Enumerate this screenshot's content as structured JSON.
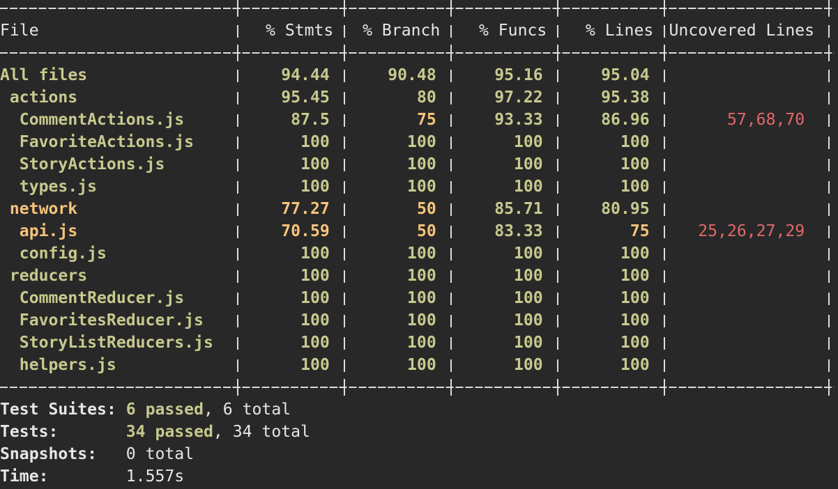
{
  "table": {
    "header": [
      "File",
      "% Stmts",
      "% Branch",
      "% Funcs",
      "% Lines",
      "Uncovered Lines"
    ],
    "rows": [
      [
        "All files",
        94.44,
        90.48,
        95.16,
        95.04,
        null
      ],
      [
        "actions",
        95.45,
        80,
        97.22,
        95.38,
        null
      ],
      [
        "CommentActions.js",
        87.5,
        75,
        93.33,
        86.96,
        "57,68,70"
      ],
      [
        "FavoriteActions.js",
        100,
        100,
        100,
        100,
        null
      ],
      [
        "StoryActions.js",
        100,
        100,
        100,
        100,
        null
      ],
      [
        "types.js",
        100,
        100,
        100,
        100,
        null
      ],
      [
        "network",
        77.27,
        50,
        85.71,
        80.95,
        null
      ],
      [
        "api.js",
        70.59,
        50,
        83.33,
        75,
        "25,26,27,29"
      ],
      [
        "config.js",
        100,
        100,
        100,
        100,
        null
      ],
      [
        "reducers",
        100,
        100,
        100,
        100,
        null
      ],
      [
        "CommentReducer.js",
        100,
        100,
        100,
        100,
        null
      ],
      [
        "FavoritesReducer.js",
        100,
        100,
        100,
        100,
        null
      ],
      [
        "StoryListReducers.js",
        100,
        100,
        100,
        100,
        null
      ],
      [
        "helpers.js",
        100,
        100,
        100,
        100,
        null
      ]
    ]
  },
  "summary": [
    {
      "label": "Test Suites:",
      "passed": "6 passed",
      "total": ", 6 total"
    },
    {
      "label": "Tests:",
      "passed": "34 passed",
      "total": ", 34 total"
    },
    {
      "label": "Snapshots:",
      "total": "0 total"
    },
    {
      "label": "Time:",
      "total": "1.557s"
    }
  ]
}
